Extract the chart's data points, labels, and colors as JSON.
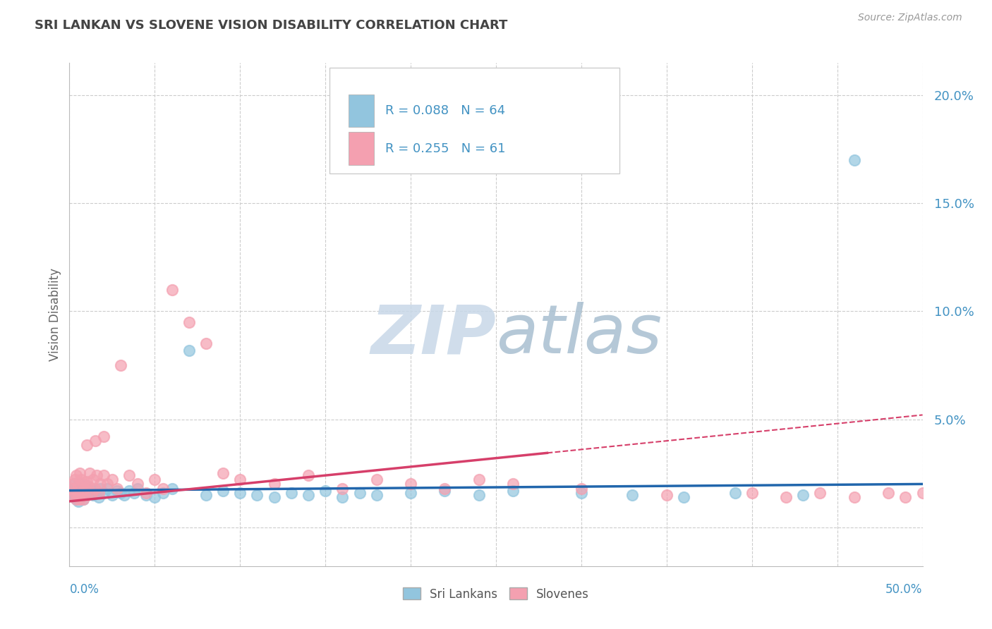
{
  "title": "SRI LANKAN VS SLOVENE VISION DISABILITY CORRELATION CHART",
  "source": "Source: ZipAtlas.com",
  "ylabel": "Vision Disability",
  "xlim": [
    0.0,
    0.5
  ],
  "ylim": [
    -0.018,
    0.215
  ],
  "yticks": [
    0.0,
    0.05,
    0.1,
    0.15,
    0.2
  ],
  "ytick_labels": [
    "",
    "5.0%",
    "10.0%",
    "15.0%",
    "20.0%"
  ],
  "sri_lankan_R": 0.088,
  "sri_lankan_N": 64,
  "slovene_R": 0.255,
  "slovene_N": 61,
  "sri_lankan_color": "#92C5DE",
  "slovene_color": "#F4A0B0",
  "sri_lankan_line_color": "#2166AC",
  "slovene_line_color": "#D63F6A",
  "background_color": "#FFFFFF",
  "grid_color": "#CCCCCC",
  "title_color": "#444444",
  "axis_label_color": "#4393C3",
  "sl_line_intercept": 0.017,
  "sl_line_slope": 0.006,
  "sv_line_intercept": 0.012,
  "sv_line_slope": 0.08,
  "sl_x": [
    0.001,
    0.002,
    0.002,
    0.003,
    0.003,
    0.003,
    0.004,
    0.004,
    0.004,
    0.005,
    0.005,
    0.005,
    0.006,
    0.006,
    0.007,
    0.007,
    0.008,
    0.008,
    0.009,
    0.01,
    0.01,
    0.011,
    0.012,
    0.013,
    0.014,
    0.015,
    0.016,
    0.017,
    0.018,
    0.02,
    0.022,
    0.025,
    0.028,
    0.03,
    0.032,
    0.035,
    0.038,
    0.04,
    0.045,
    0.05,
    0.055,
    0.06,
    0.07,
    0.08,
    0.09,
    0.1,
    0.11,
    0.12,
    0.13,
    0.14,
    0.15,
    0.16,
    0.17,
    0.18,
    0.2,
    0.22,
    0.24,
    0.26,
    0.3,
    0.33,
    0.36,
    0.39,
    0.43,
    0.46
  ],
  "sl_y": [
    0.017,
    0.018,
    0.015,
    0.02,
    0.016,
    0.014,
    0.018,
    0.015,
    0.013,
    0.019,
    0.016,
    0.012,
    0.02,
    0.014,
    0.018,
    0.015,
    0.017,
    0.013,
    0.016,
    0.019,
    0.015,
    0.017,
    0.016,
    0.018,
    0.015,
    0.017,
    0.016,
    0.014,
    0.018,
    0.016,
    0.018,
    0.015,
    0.017,
    0.016,
    0.015,
    0.017,
    0.016,
    0.018,
    0.015,
    0.014,
    0.016,
    0.018,
    0.082,
    0.015,
    0.017,
    0.016,
    0.015,
    0.014,
    0.016,
    0.015,
    0.017,
    0.014,
    0.016,
    0.015,
    0.016,
    0.017,
    0.015,
    0.017,
    0.016,
    0.015,
    0.014,
    0.016,
    0.015,
    0.17
  ],
  "sv_x": [
    0.001,
    0.002,
    0.002,
    0.003,
    0.003,
    0.004,
    0.004,
    0.005,
    0.005,
    0.006,
    0.006,
    0.007,
    0.007,
    0.008,
    0.008,
    0.009,
    0.01,
    0.01,
    0.011,
    0.012,
    0.013,
    0.014,
    0.015,
    0.016,
    0.017,
    0.018,
    0.02,
    0.022,
    0.025,
    0.028,
    0.03,
    0.035,
    0.04,
    0.045,
    0.05,
    0.055,
    0.06,
    0.07,
    0.08,
    0.09,
    0.1,
    0.12,
    0.14,
    0.16,
    0.18,
    0.2,
    0.22,
    0.24,
    0.26,
    0.3,
    0.35,
    0.4,
    0.42,
    0.44,
    0.46,
    0.48,
    0.49,
    0.5,
    0.01,
    0.015,
    0.02
  ],
  "sv_y": [
    0.018,
    0.02,
    0.015,
    0.022,
    0.016,
    0.024,
    0.013,
    0.019,
    0.015,
    0.025,
    0.013,
    0.022,
    0.016,
    0.02,
    0.013,
    0.018,
    0.021,
    0.015,
    0.019,
    0.025,
    0.016,
    0.022,
    0.018,
    0.024,
    0.016,
    0.02,
    0.024,
    0.02,
    0.022,
    0.018,
    0.075,
    0.024,
    0.02,
    0.016,
    0.022,
    0.018,
    0.11,
    0.095,
    0.085,
    0.025,
    0.022,
    0.02,
    0.024,
    0.018,
    0.022,
    0.02,
    0.018,
    0.022,
    0.02,
    0.018,
    0.015,
    0.016,
    0.014,
    0.016,
    0.014,
    0.016,
    0.014,
    0.016,
    0.038,
    0.04,
    0.042
  ]
}
